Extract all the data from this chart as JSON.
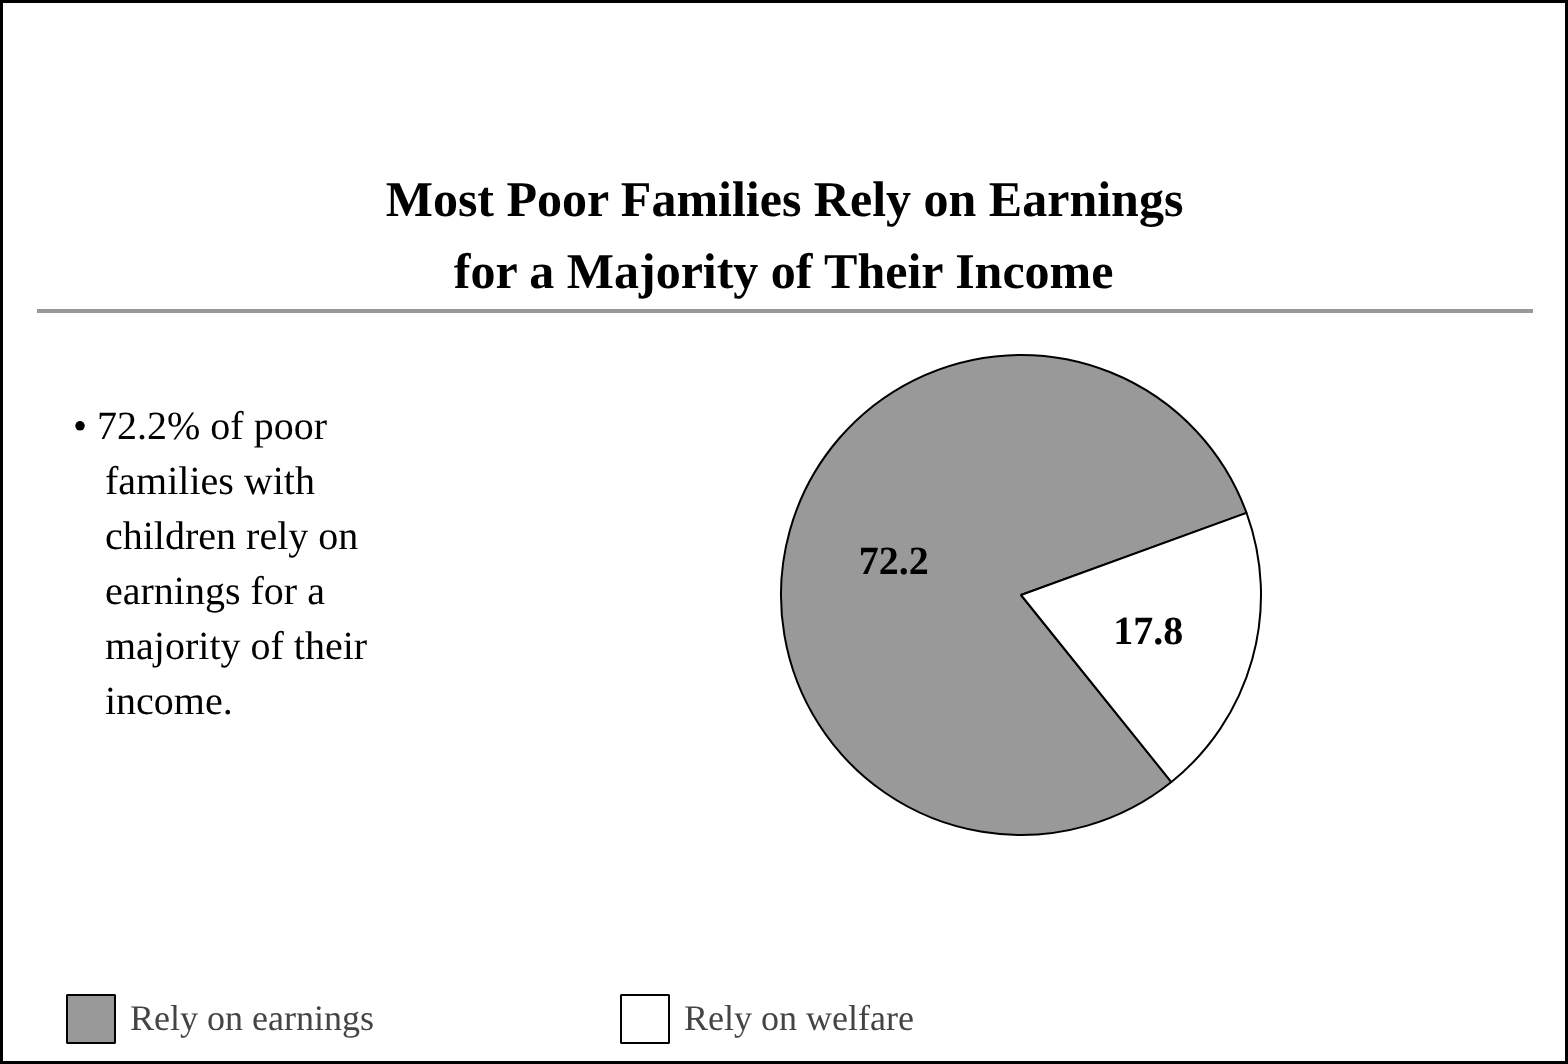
{
  "chart_data": {
    "type": "pie",
    "title": "Most Poor Families Rely on Earnings for a Majority of Their Income",
    "categories": [
      "Rely on earnings",
      "Rely on welfare"
    ],
    "values": [
      72.2,
      17.8
    ],
    "colors": [
      "#999999",
      "#ffffff"
    ],
    "data_labels": true,
    "legend": "bottom",
    "annotations": [
      "• 72.2% of poor families with children rely on earnings for a majority of their income."
    ]
  }
}
